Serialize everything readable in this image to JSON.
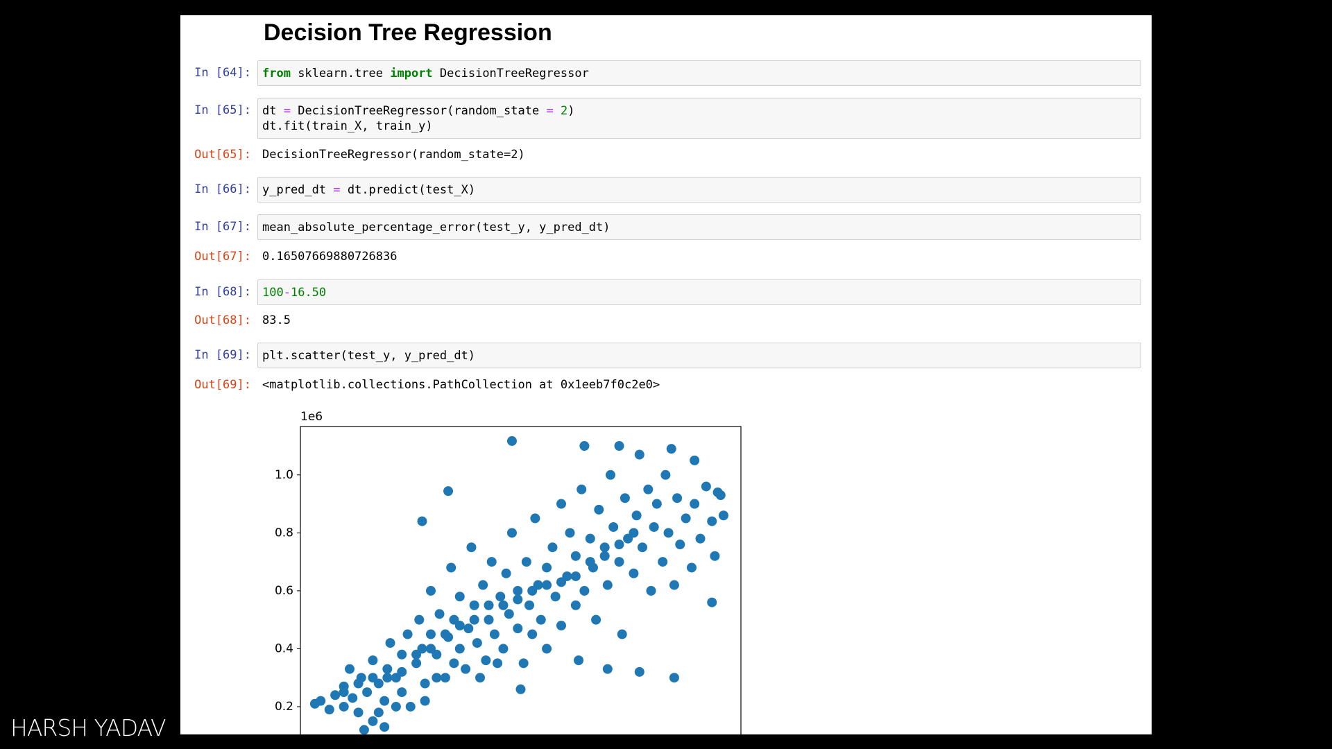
{
  "header": {
    "title": "Decision Tree Regression"
  },
  "cells": [
    {
      "in_prompt": "In [64]:",
      "code": [
        [
          {
            "text": "from",
            "color": "#008000"
          },
          " sklearn.tree ",
          {
            "text": "import",
            "color": "#008000"
          },
          " DecisionTreeRegressor"
        ]
      ]
    },
    {
      "in_prompt": "In [65]:",
      "code": [
        [
          "dt ",
          {
            "text": "=",
            "color": "#aa22ff"
          },
          " DecisionTreeRegressor(random_state ",
          {
            "text": "=",
            "color": "#aa22ff"
          },
          " ",
          {
            "text": "2",
            "color": "#008000"
          },
          ")"
        ],
        [
          "dt.fit(train_X, train_y)"
        ]
      ],
      "out_prompt": "Out[65]:",
      "output": "DecisionTreeRegressor(random_state=2)"
    },
    {
      "in_prompt": "In [66]:",
      "code": [
        [
          "y_pred_dt ",
          {
            "text": "=",
            "color": "#aa22ff"
          },
          " dt.predict(test_X)"
        ]
      ]
    },
    {
      "in_prompt": "In [67]:",
      "code": [
        [
          "mean_absolute_percentage_error(test_y, y_pred_dt)"
        ]
      ],
      "out_prompt": "Out[67]:",
      "output": "0.16507669880726836"
    },
    {
      "in_prompt": "In [68]:",
      "code": [
        [
          {
            "text": "100",
            "color": "#008000"
          },
          {
            "text": "-",
            "color": "#aa22ff"
          },
          {
            "text": "16.50",
            "color": "#008000"
          }
        ]
      ],
      "out_prompt": "Out[68]:",
      "output": "83.5"
    },
    {
      "in_prompt": "In [69]:",
      "code": [
        [
          "plt.scatter(test_y, y_pred_dt)"
        ]
      ],
      "out_prompt": "Out[69]:",
      "output": "<matplotlib.collections.PathCollection at 0x1eeb7f0c2e0>"
    }
  ],
  "chart_data": {
    "type": "scatter",
    "offset_label": "1e6",
    "color": "#1f77b4",
    "xlim": [
      0.15,
      1.67
    ],
    "ylim": [
      0.03,
      1.167
    ],
    "yticks": [
      0.2,
      0.4,
      0.6,
      0.8,
      {
        "value": 1,
        "label": "1.0"
      }
    ],
    "x": [
      0.22,
      0.2,
      0.25,
      0.27,
      0.3,
      0.3,
      0.32,
      0.33,
      0.35,
      0.36,
      0.38,
      0.4,
      0.4,
      0.42,
      0.44,
      0.45,
      0.46,
      0.48,
      0.5,
      0.5,
      0.52,
      0.53,
      0.55,
      0.56,
      0.57,
      0.58,
      0.6,
      0.6,
      0.62,
      0.63,
      0.65,
      0.66,
      0.67,
      0.68,
      0.7,
      0.7,
      0.72,
      0.73,
      0.74,
      0.75,
      0.76,
      0.78,
      0.79,
      0.8,
      0.81,
      0.82,
      0.84,
      0.85,
      0.86,
      0.87,
      0.88,
      0.9,
      0.9,
      0.92,
      0.93,
      0.94,
      0.95,
      0.96,
      0.97,
      0.98,
      1.0,
      1.0,
      1.02,
      1.03,
      1.05,
      1.05,
      1.07,
      1.08,
      1.1,
      1.1,
      1.12,
      1.13,
      1.15,
      1.16,
      1.17,
      1.18,
      1.2,
      1.21,
      1.22,
      1.23,
      1.25,
      1.26,
      1.27,
      1.28,
      1.3,
      1.31,
      1.32,
      1.33,
      1.35,
      1.36,
      1.37,
      1.38,
      1.4,
      1.41,
      1.42,
      1.44,
      1.45,
      1.46,
      1.48,
      1.5,
      1.51,
      1.53,
      1.55,
      1.57,
      1.58,
      1.6,
      1.61,
      0.88,
      0.66,
      1.44,
      1.57,
      1.13,
      1.25,
      1.43,
      1.51,
      1.59,
      1.21,
      1.32,
      0.91,
      1.11,
      0.57,
      0.3,
      0.35,
      0.4,
      0.45,
      0.5,
      0.55,
      0.6,
      0.65,
      0.7,
      0.75,
      0.8,
      0.85,
      0.9,
      0.95,
      1.0,
      1.05,
      1.1,
      1.15,
      1.2,
      1.25,
      1.3,
      0.42,
      0.48,
      0.37,
      0.44,
      0.58,
      0.62,
      0.68,
      0.77,
      0.83
    ],
    "values": [
      0.22,
      0.21,
      0.19,
      0.24,
      0.2,
      0.27,
      0.33,
      0.23,
      0.18,
      0.3,
      0.25,
      0.36,
      0.15,
      0.28,
      0.22,
      0.33,
      0.42,
      0.3,
      0.38,
      0.25,
      0.45,
      0.2,
      0.35,
      0.5,
      0.4,
      0.28,
      0.45,
      0.6,
      0.38,
      0.52,
      0.3,
      0.44,
      0.68,
      0.5,
      0.4,
      0.58,
      0.33,
      0.47,
      0.75,
      0.55,
      0.42,
      0.62,
      0.36,
      0.5,
      0.7,
      0.45,
      0.58,
      0.4,
      0.66,
      0.52,
      0.8,
      0.47,
      0.6,
      0.35,
      0.7,
      0.55,
      0.45,
      0.85,
      0.62,
      0.5,
      0.68,
      0.4,
      0.75,
      0.58,
      0.9,
      0.48,
      0.65,
      0.8,
      0.55,
      0.72,
      0.95,
      0.6,
      0.78,
      0.68,
      0.5,
      0.88,
      0.72,
      0.62,
      1.0,
      0.82,
      0.7,
      0.45,
      0.92,
      0.78,
      0.66,
      0.86,
      1.07,
      0.75,
      0.95,
      0.6,
      0.82,
      0.9,
      0.7,
      1.0,
      0.8,
      0.62,
      0.92,
      0.76,
      0.85,
      0.68,
      0.9,
      0.78,
      0.96,
      0.84,
      0.72,
      0.93,
      0.86,
      1.117,
      0.944,
      0.3,
      0.56,
      1.1,
      1.1,
      1.09,
      1.05,
      0.94,
      0.33,
      0.32,
      0.26,
      0.36,
      0.84,
      0.25,
      0.28,
      0.3,
      0.3,
      0.32,
      0.38,
      0.4,
      0.45,
      0.48,
      0.5,
      0.55,
      0.55,
      0.57,
      0.6,
      0.62,
      0.63,
      0.65,
      0.7,
      0.75,
      0.76,
      0.8,
      0.18,
      0.2,
      0.12,
      0.13,
      0.22,
      0.3,
      0.35,
      0.3,
      0.35
    ]
  },
  "watermark": "HARSH YADAV"
}
